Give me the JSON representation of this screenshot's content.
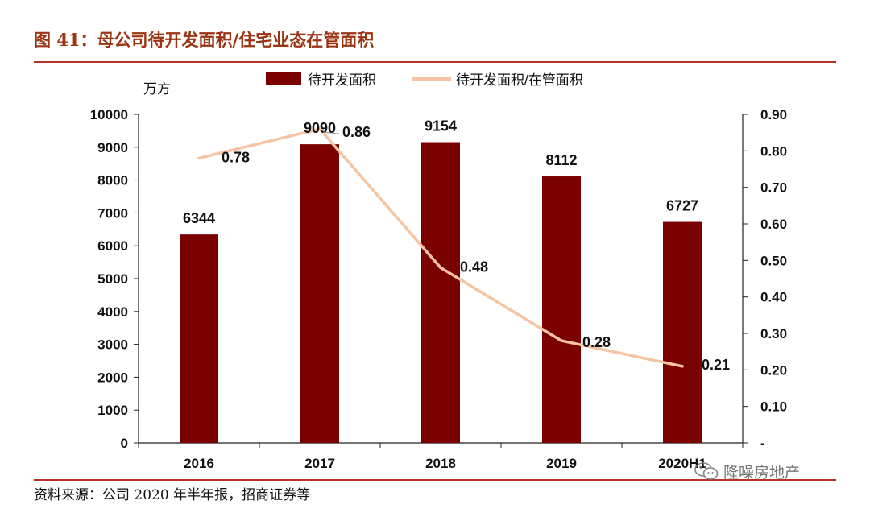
{
  "header": {
    "figure_title": "图 41：母公司待开发面积/住宅业态在管面积"
  },
  "footer": {
    "source": "资料来源：公司 2020 年半年报，招商证券等"
  },
  "watermark": {
    "text": "隆噪房地产",
    "icon": "wechat-icon"
  },
  "colors": {
    "bar": "#7b0000",
    "line": "#f6c4a2",
    "rule": "#b5322b",
    "title": "#9a3412"
  },
  "chart_data": {
    "type": "bar+line",
    "y_unit_label": "万方",
    "categories": [
      "2016",
      "2017",
      "2018",
      "2019",
      "2020H1"
    ],
    "series": [
      {
        "name": "待开发面积",
        "type": "bar",
        "axis": "left",
        "values": [
          6344,
          9090,
          9154,
          8112,
          6727
        ],
        "labels": [
          "6344",
          "9090",
          "9154",
          "8112",
          "6727"
        ]
      },
      {
        "name": "待开发面积/在管面积",
        "type": "line",
        "axis": "right",
        "values": [
          0.78,
          0.86,
          0.48,
          0.28,
          0.21
        ],
        "labels": [
          "0.78",
          "0.86",
          "0.48",
          "0.28",
          "0.21"
        ]
      }
    ],
    "y_left": {
      "min": 0,
      "max": 10000,
      "ticks": [
        "0",
        "1000",
        "2000",
        "3000",
        "4000",
        "5000",
        "6000",
        "7000",
        "8000",
        "9000",
        "10000"
      ]
    },
    "y_right": {
      "min": 0,
      "max": 0.9,
      "ticks": [
        "-",
        "0.10",
        "0.20",
        "0.30",
        "0.40",
        "0.50",
        "0.60",
        "0.70",
        "0.80",
        "0.90"
      ]
    },
    "legend_position": "top-center",
    "grid": false
  }
}
